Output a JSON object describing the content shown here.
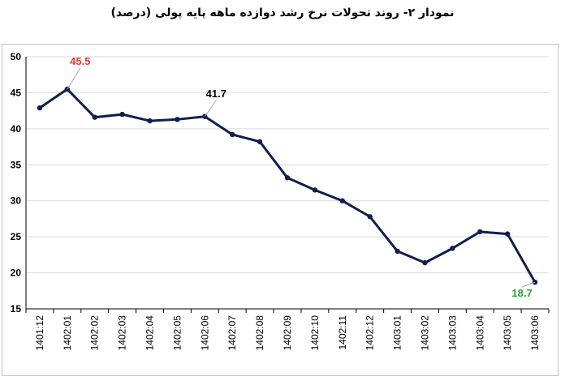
{
  "title": "نمودار ۲- روند تحولات نرخ رشد دوازده ماهه پایه پولی (درصد)",
  "colors": {
    "line": "#0f1f4d",
    "max_label": "#e03c31",
    "min_label": "#2aa33a",
    "normal_label": "#000000",
    "grid": "#d9d9d9"
  },
  "chart_data": {
    "type": "line",
    "title": "نمودار ۲- روند تحولات نرخ رشد دوازده ماهه پایه پولی (درصد)",
    "xlabel": "",
    "ylabel": "",
    "ylim": [
      15,
      50
    ],
    "yticks": [
      15,
      20,
      25,
      30,
      35,
      40,
      45,
      50
    ],
    "grid": true,
    "categories": [
      "1401:12",
      "1402:01",
      "1402:02",
      "1402:03",
      "1402:04",
      "1402:05",
      "1402:06",
      "1402:07",
      "1402:08",
      "1402:09",
      "1402:10",
      "1402:11",
      "1402:12",
      "1403:01",
      "1403:02",
      "1403:03",
      "1403:04",
      "1403:05",
      "1403:06"
    ],
    "series": [
      {
        "values": [
          42.9,
          45.5,
          41.6,
          42.0,
          41.1,
          41.3,
          41.7,
          39.2,
          38.2,
          33.2,
          31.5,
          30.0,
          27.8,
          23.0,
          21.4,
          23.4,
          25.7,
          25.4,
          18.7
        ]
      }
    ],
    "data_labels": [
      {
        "index": 1,
        "text": "45.5",
        "color": "#e03c31"
      },
      {
        "index": 6,
        "text": "41.7",
        "color": "#000000"
      },
      {
        "index": 18,
        "text": "18.7",
        "color": "#2aa33a"
      }
    ]
  }
}
